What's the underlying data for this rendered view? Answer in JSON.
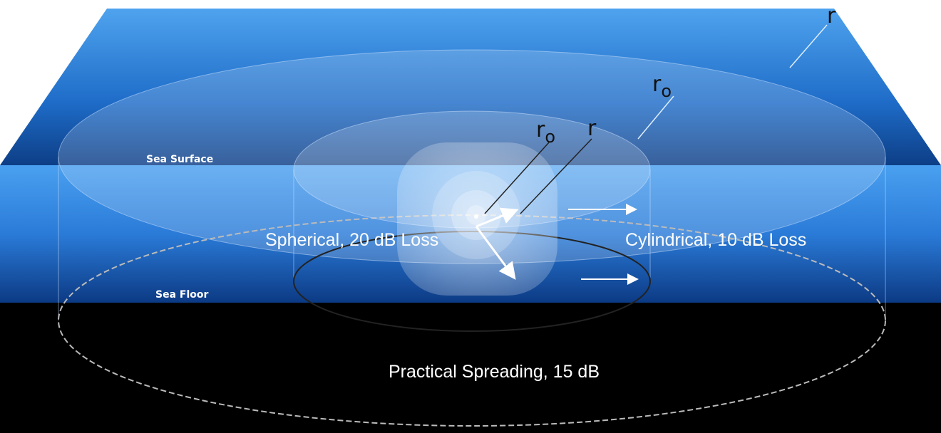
{
  "surface_label": "Sea Surface",
  "floor_label": "Sea Floor",
  "radii": [
    {
      "symbol": "r"
    },
    {
      "symbol": "r",
      "subscript": "o"
    },
    {
      "symbol": "r",
      "subscript": "o"
    },
    {
      "symbol": "r"
    }
  ],
  "spherical_label": "Spherical, 20 dB Loss",
  "cylindrical_label": "Cylindrical, 10 dB Loss",
  "practical_label": "Practical Spreading, 15 dB"
}
